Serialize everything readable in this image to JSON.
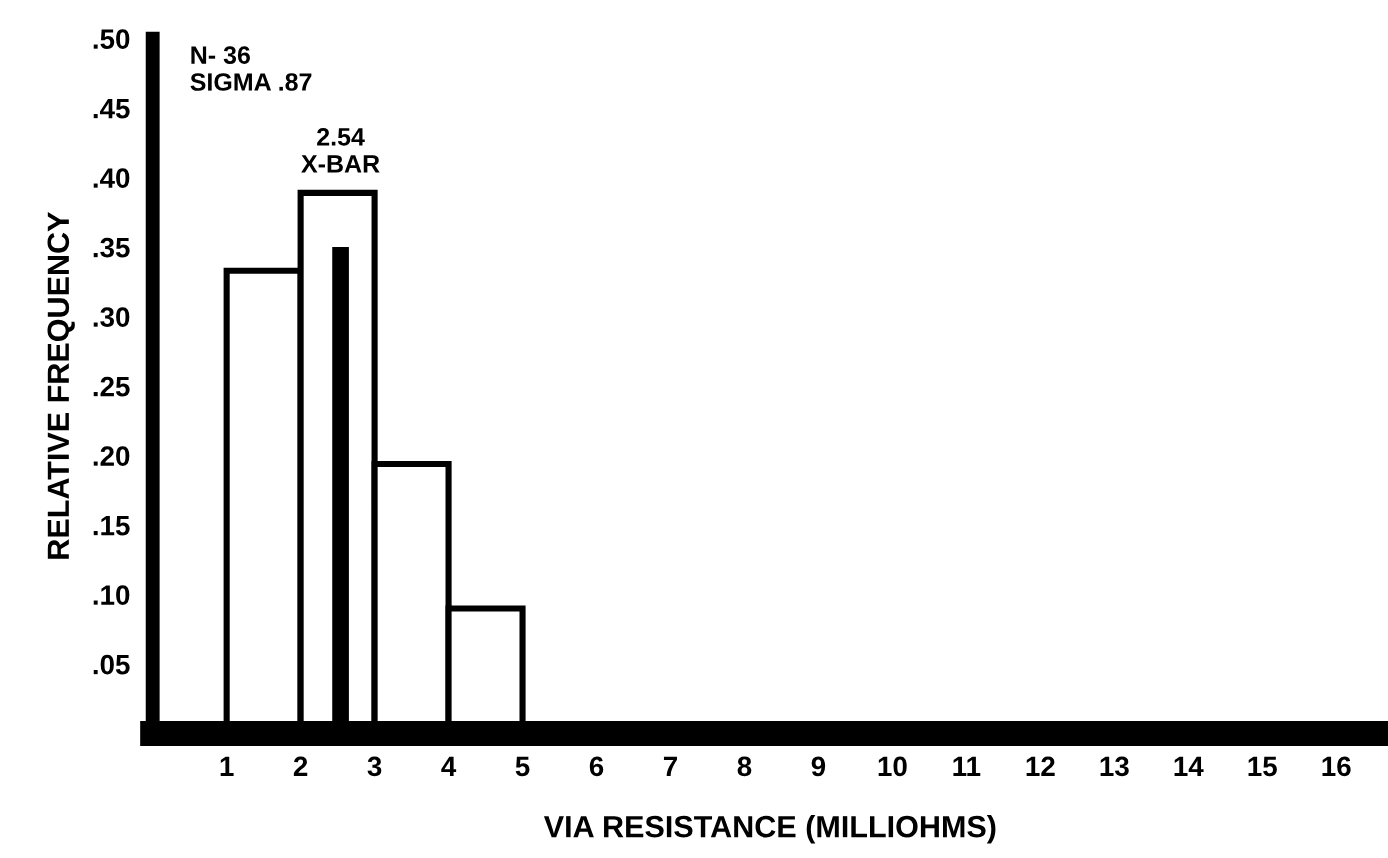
{
  "chart_data": {
    "type": "histogram",
    "bins": [
      1,
      2,
      3,
      4,
      5
    ],
    "values": [
      0.333,
      0.389,
      0.194,
      0.09
    ],
    "color": "#ffffff",
    "xlim": [
      0,
      16.7
    ],
    "ylim": [
      0,
      0.5
    ],
    "xticks": [
      1,
      2,
      3,
      4,
      5,
      6,
      7,
      8,
      9,
      10,
      11,
      12,
      13,
      14,
      15,
      16
    ],
    "yticks": [
      {
        "value": 0.05,
        "label": ".05"
      },
      {
        "value": 0.1,
        "label": ".10"
      },
      {
        "value": 0.15,
        "label": ".15"
      },
      {
        "value": 0.2,
        "label": ".20"
      },
      {
        "value": 0.25,
        "label": ".25"
      },
      {
        "value": 0.3,
        "label": ".30"
      },
      {
        "value": 0.35,
        "label": ".35"
      },
      {
        "value": 0.4,
        "label": ".40"
      },
      {
        "value": 0.45,
        "label": ".45"
      },
      {
        "value": 0.5,
        "label": ".50"
      }
    ],
    "xlabel": "VIA RESISTANCE (MILLIOHMS)",
    "ylabel": "RELATIVE FREQUENCY",
    "annotations": [
      "N- 36\nSIGMA .87"
    ],
    "ref_lines": [
      {
        "axis": "x",
        "value": 2.54,
        "label": "2.54\nX-BAR",
        "color": "#000000"
      }
    ],
    "grid": false,
    "legend": false
  }
}
